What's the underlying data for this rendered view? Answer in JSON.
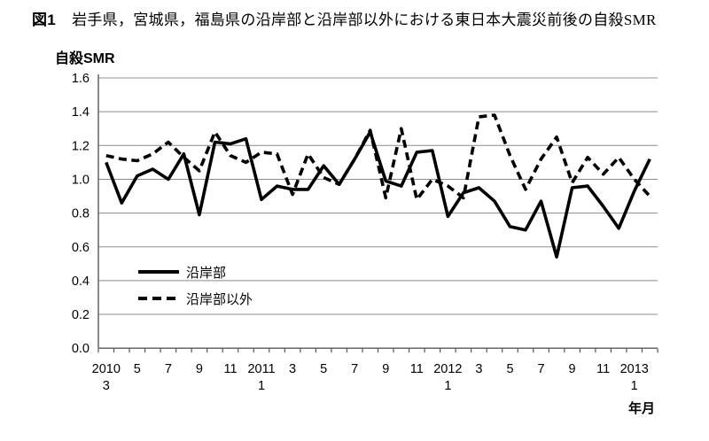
{
  "figure": {
    "number_label": "図1",
    "title": "岩手県，宮城県，福島県の沿岸部と沿岸部以外における東日本大震災前後の自殺SMR"
  },
  "y_axis_title": "自殺SMR",
  "x_axis_title": "年月",
  "legend": {
    "coastal_label": "沿岸部",
    "non_coastal_label": "沿岸部以外"
  },
  "colors": {
    "line": "#000000",
    "grid": "#8c8c8c",
    "axis": "#595959",
    "background": "#ffffff"
  },
  "chart_data": {
    "type": "line",
    "title": "岩手県，宮城県，福島県の沿岸部と沿岸部以外における東日本大震災前後の自殺SMR",
    "ylabel": "自殺SMR",
    "xlabel": "年月",
    "ylim": [
      0.0,
      1.6
    ],
    "ytick_step": 0.2,
    "grid": true,
    "legend_position": "inside-lower-left",
    "x": [
      "2010/3",
      "2010/4",
      "2010/5",
      "2010/6",
      "2010/7",
      "2010/8",
      "2010/9",
      "2010/10",
      "2010/11",
      "2010/12",
      "2011/1",
      "2011/2",
      "2011/3",
      "2011/4",
      "2011/5",
      "2011/6",
      "2011/7",
      "2011/8",
      "2011/9",
      "2011/10",
      "2011/11",
      "2011/12",
      "2012/1",
      "2012/2",
      "2012/3",
      "2012/4",
      "2012/5",
      "2012/6",
      "2012/7",
      "2012/8",
      "2012/9",
      "2012/10",
      "2012/11",
      "2012/12",
      "2013/1",
      "2013/2"
    ],
    "series": [
      {
        "name": "沿岸部",
        "style": "solid",
        "values": [
          1.1,
          0.86,
          1.02,
          1.06,
          1.0,
          1.15,
          0.79,
          1.22,
          1.21,
          1.24,
          0.88,
          0.96,
          0.94,
          0.94,
          1.08,
          0.97,
          1.12,
          1.28,
          0.99,
          0.96,
          1.16,
          1.17,
          0.78,
          0.92,
          0.95,
          0.87,
          0.72,
          0.7,
          0.87,
          0.54,
          0.95,
          0.96,
          0.84,
          0.71,
          0.93,
          1.12
        ]
      },
      {
        "name": "沿岸部以外",
        "style": "dashed",
        "values": [
          1.14,
          1.12,
          1.11,
          1.15,
          1.22,
          1.13,
          1.05,
          1.28,
          1.14,
          1.1,
          1.16,
          1.15,
          0.91,
          1.15,
          1.01,
          0.97,
          1.12,
          1.29,
          0.89,
          1.3,
          0.88,
          1.0,
          0.96,
          0.89,
          1.37,
          1.38,
          1.14,
          0.94,
          1.12,
          1.25,
          0.98,
          1.13,
          1.03,
          1.13,
          1.0,
          0.9
        ]
      }
    ]
  }
}
